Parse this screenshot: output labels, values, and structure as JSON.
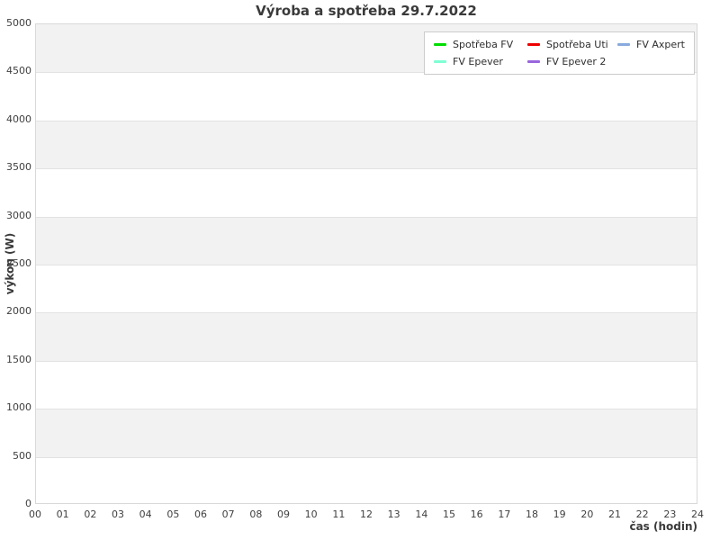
{
  "chart_data": {
    "type": "line",
    "title": "Výroba a spotřeba 29.7.2022",
    "xlabel": "čas (hodin)",
    "ylabel": "výkon (W)",
    "xlim": [
      0,
      24
    ],
    "ylim": [
      0,
      5000
    ],
    "xticks": [
      "00",
      "01",
      "02",
      "03",
      "04",
      "05",
      "06",
      "07",
      "08",
      "09",
      "10",
      "11",
      "12",
      "13",
      "14",
      "15",
      "16",
      "17",
      "18",
      "19",
      "20",
      "21",
      "22",
      "23",
      "24"
    ],
    "yticks": [
      0,
      500,
      1000,
      1500,
      2000,
      2500,
      3000,
      3500,
      4000,
      4500,
      5000
    ],
    "grid": "horizontal gridlines with alternating shaded bands every 500 W",
    "legend_position": "top-right inside plot",
    "series": [
      {
        "name": "Spotřeba FV",
        "color": "#00dd00",
        "values": []
      },
      {
        "name": "Spotřeba Uti",
        "color": "#ee0000",
        "values": []
      },
      {
        "name": "FV Axpert",
        "color": "#88aadd",
        "values": []
      },
      {
        "name": "FV Epever",
        "color": "#7fffd4",
        "values": []
      },
      {
        "name": "FV Epever 2",
        "color": "#9966dd",
        "values": []
      }
    ],
    "plotted_points_visible": false
  },
  "colors": {
    "band": "#f2f2f2",
    "gridline": "#e2e2e2",
    "plot_border": "#d9d9d9",
    "text": "#3a3a3a",
    "legend_border": "#cccccc",
    "background": "#ffffff"
  }
}
